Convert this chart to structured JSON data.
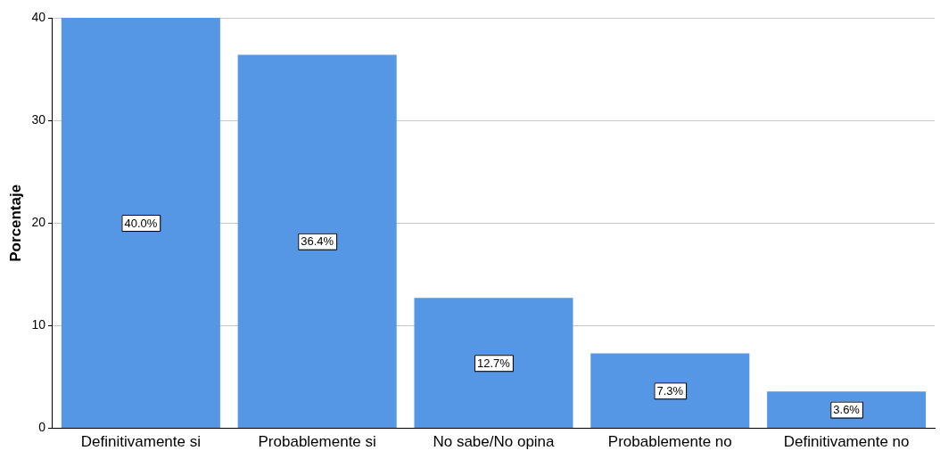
{
  "chart_data": {
    "type": "bar",
    "ylabel": "Porcentaje",
    "categories": [
      "Definitivamente si",
      "Probablemente si",
      "No sabe/No opina",
      "Probablemente no",
      "Definitivamente no"
    ],
    "values": [
      40.0,
      36.4,
      12.7,
      7.3,
      3.6
    ],
    "value_labels": [
      "40.0%",
      "36.4%",
      "12.7%",
      "7.3%",
      "3.6%"
    ],
    "color": "#5596e5",
    "ylim": [
      0,
      40
    ],
    "yticks": [
      0,
      10,
      20,
      30,
      40
    ],
    "grid": "y",
    "legend": false
  }
}
